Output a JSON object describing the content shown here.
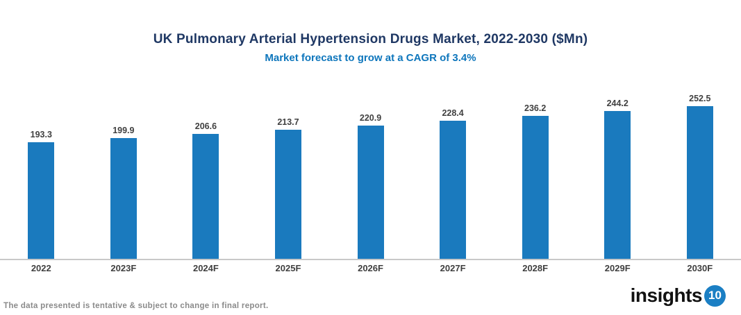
{
  "header": {
    "title": "UK Pulmonary Arterial Hypertension Drugs Market, 2022-2030 ($Mn)",
    "subtitle": "Market forecast to grow at a CAGR of 3.4%"
  },
  "chart_data": {
    "type": "bar",
    "title": "UK Pulmonary Arterial Hypertension Drugs Market, 2022-2030 ($Mn)",
    "subtitle": "Market forecast to grow at a CAGR of 3.4%",
    "categories": [
      "2022",
      "2023F",
      "2024F",
      "2025F",
      "2026F",
      "2027F",
      "2028F",
      "2029F",
      "2030F"
    ],
    "values": [
      193.3,
      199.9,
      206.6,
      213.7,
      220.9,
      228.4,
      236.2,
      244.2,
      252.5
    ],
    "xlabel": "",
    "ylabel": "",
    "ylim": [
      0,
      260
    ],
    "grid": false,
    "legend": false,
    "value_labels_shown": true,
    "bar_color": "#1A7ABE",
    "cagr": "3.4%"
  },
  "footer": {
    "disclaimer": "The data presented is tentative & subject to change in final report.",
    "logo_text": "insights",
    "logo_badge": "10"
  },
  "colors": {
    "title_text": "#1F3864",
    "subtitle_text": "#0E76BC",
    "bar": "#1A7ABE",
    "axis_line": "#C8C8C8",
    "label_text": "#404040",
    "disclaimer_text": "#8A8A8A",
    "logo_badge_bg": "#1B7FC4"
  }
}
